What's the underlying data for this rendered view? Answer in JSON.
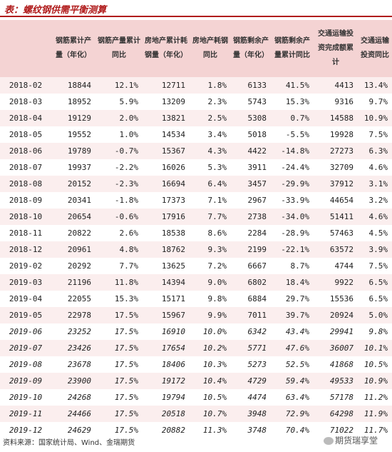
{
  "title": "表：螺纹钢供需平衡测算",
  "columns": [
    "",
    "钢筋累计产量（年化）",
    "钢筋产量累计同比",
    "房地产累计耗钢量（年化）",
    "房地产耗钢同比",
    "钢筋剩余产量（年化）",
    "钢筋剩余产量累计同比",
    "交通运输投资完成额累计",
    "交通运输投资同比"
  ],
  "rows": [
    {
      "date": "2018-02",
      "c1": "18844",
      "c2": "12.1%",
      "c3": "12711",
      "c4": "1.8%",
      "c5": "6133",
      "c6": "41.5%",
      "c7": "4413",
      "c8": "13.4%"
    },
    {
      "date": "2018-03",
      "c1": "18952",
      "c2": "5.9%",
      "c3": "13209",
      "c4": "2.3%",
      "c5": "5743",
      "c6": "15.3%",
      "c7": "9316",
      "c8": "9.7%"
    },
    {
      "date": "2018-04",
      "c1": "19129",
      "c2": "2.0%",
      "c3": "13821",
      "c4": "2.5%",
      "c5": "5308",
      "c6": "0.7%",
      "c7": "14588",
      "c8": "10.9%"
    },
    {
      "date": "2018-05",
      "c1": "19552",
      "c2": "1.0%",
      "c3": "14534",
      "c4": "3.4%",
      "c5": "5018",
      "c6": "-5.5%",
      "c7": "19928",
      "c8": "7.5%"
    },
    {
      "date": "2018-06",
      "c1": "19789",
      "c2": "-0.7%",
      "c3": "15367",
      "c4": "4.3%",
      "c5": "4422",
      "c6": "-14.8%",
      "c7": "27273",
      "c8": "6.3%"
    },
    {
      "date": "2018-07",
      "c1": "19937",
      "c2": "-2.2%",
      "c3": "16026",
      "c4": "5.3%",
      "c5": "3911",
      "c6": "-24.4%",
      "c7": "32709",
      "c8": "4.6%"
    },
    {
      "date": "2018-08",
      "c1": "20152",
      "c2": "-2.3%",
      "c3": "16694",
      "c4": "6.4%",
      "c5": "3457",
      "c6": "-29.9%",
      "c7": "37912",
      "c8": "3.1%"
    },
    {
      "date": "2018-09",
      "c1": "20341",
      "c2": "-1.8%",
      "c3": "17373",
      "c4": "7.1%",
      "c5": "2967",
      "c6": "-33.9%",
      "c7": "44654",
      "c8": "3.2%"
    },
    {
      "date": "2018-10",
      "c1": "20654",
      "c2": "-0.6%",
      "c3": "17916",
      "c4": "7.7%",
      "c5": "2738",
      "c6": "-34.0%",
      "c7": "51411",
      "c8": "4.6%"
    },
    {
      "date": "2018-11",
      "c1": "20822",
      "c2": "2.6%",
      "c3": "18538",
      "c4": "8.6%",
      "c5": "2284",
      "c6": "-28.9%",
      "c7": "57463",
      "c8": "4.5%"
    },
    {
      "date": "2018-12",
      "c1": "20961",
      "c2": "4.8%",
      "c3": "18762",
      "c4": "9.3%",
      "c5": "2199",
      "c6": "-22.1%",
      "c7": "63572",
      "c8": "3.9%"
    },
    {
      "date": "2019-02",
      "c1": "20292",
      "c2": "7.7%",
      "c3": "13625",
      "c4": "7.2%",
      "c5": "6667",
      "c6": "8.7%",
      "c7": "4744",
      "c8": "7.5%"
    },
    {
      "date": "2019-03",
      "c1": "21196",
      "c2": "11.8%",
      "c3": "14394",
      "c4": "9.0%",
      "c5": "6802",
      "c6": "18.4%",
      "c7": "9922",
      "c8": "6.5%"
    },
    {
      "date": "2019-04",
      "c1": "22055",
      "c2": "15.3%",
      "c3": "15171",
      "c4": "9.8%",
      "c5": "6884",
      "c6": "29.7%",
      "c7": "15536",
      "c8": "6.5%"
    },
    {
      "date": "2019-05",
      "c1": "22978",
      "c2": "17.5%",
      "c3": "15967",
      "c4": "9.9%",
      "c5": "7011",
      "c6": "39.7%",
      "c7": "20924",
      "c8": "5.0%"
    },
    {
      "date": "2019-06",
      "c1": "23252",
      "c2": "17.5%",
      "c3": "16910",
      "c4": "10.0%",
      "c5": "6342",
      "c6": "43.4%",
      "c7": "29941",
      "c8": "9.8%"
    },
    {
      "date": "2019-07",
      "c1": "23426",
      "c2": "17.5%",
      "c3": "17654",
      "c4": "10.2%",
      "c5": "5771",
      "c6": "47.6%",
      "c7": "36007",
      "c8": "10.1%"
    },
    {
      "date": "2019-08",
      "c1": "23678",
      "c2": "17.5%",
      "c3": "18406",
      "c4": "10.3%",
      "c5": "5273",
      "c6": "52.5%",
      "c7": "41868",
      "c8": "10.5%"
    },
    {
      "date": "2019-09",
      "c1": "23900",
      "c2": "17.5%",
      "c3": "19172",
      "c4": "10.4%",
      "c5": "4729",
      "c6": "59.4%",
      "c7": "49533",
      "c8": "10.9%"
    },
    {
      "date": "2019-10",
      "c1": "24268",
      "c2": "17.5%",
      "c3": "19794",
      "c4": "10.5%",
      "c5": "4474",
      "c6": "63.4%",
      "c7": "57178",
      "c8": "11.2%"
    },
    {
      "date": "2019-11",
      "c1": "24466",
      "c2": "17.5%",
      "c3": "20518",
      "c4": "10.7%",
      "c5": "3948",
      "c6": "72.9%",
      "c7": "64298",
      "c8": "11.9%"
    },
    {
      "date": "2019-12",
      "c1": "24629",
      "c2": "17.5%",
      "c3": "20882",
      "c4": "11.3%",
      "c5": "3748",
      "c6": "70.4%",
      "c7": "71022",
      "c8": "11.7%"
    }
  ],
  "forecast_from_index": 15,
  "source": "资料来源：国家统计局、Wind、金瑞期货",
  "watermark": "期货瑞享堂",
  "colors": {
    "title": "#b01c1c",
    "header_bg": "#f4d3d3",
    "row_alt": "#fbeeee"
  }
}
